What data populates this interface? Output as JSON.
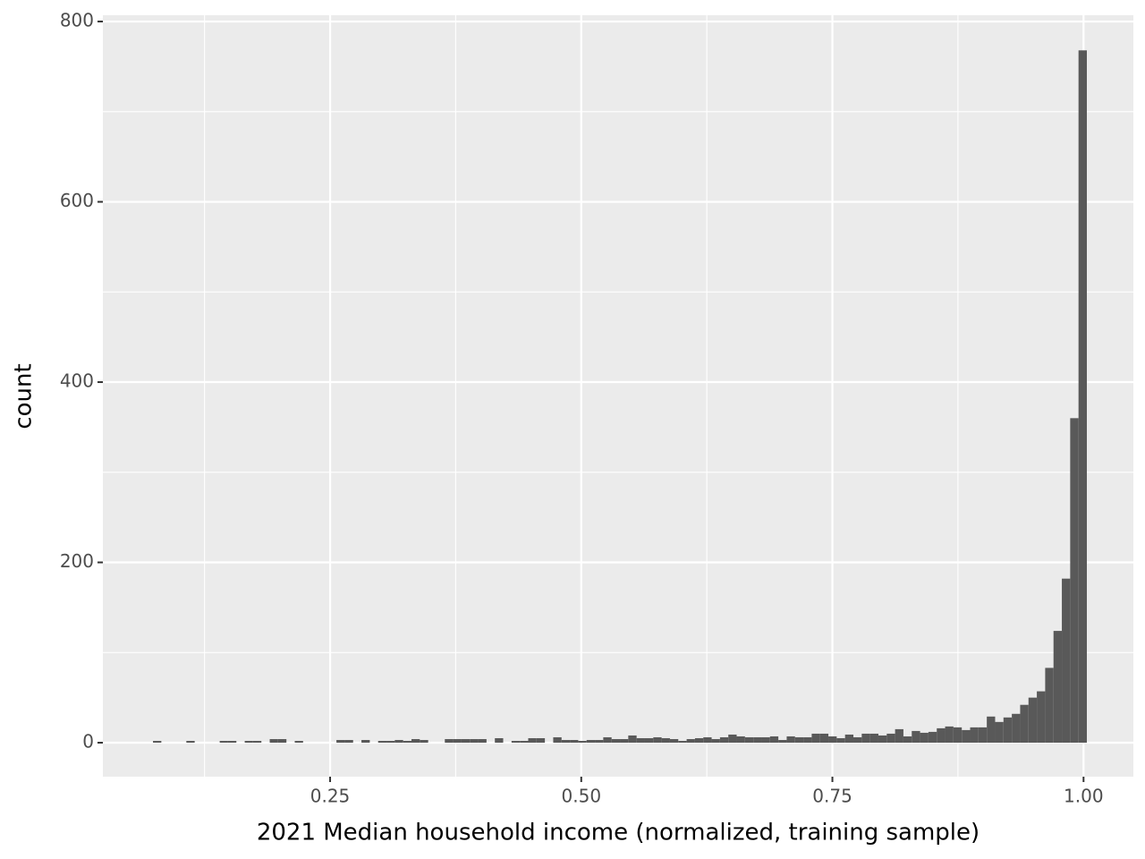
{
  "chart_data": {
    "type": "histogram",
    "x_label": "2021 Median household income (normalized, training sample)",
    "y_label": "count",
    "color": "#595959",
    "background": "#ebebeb",
    "grid": true,
    "xlim": [
      0.0238,
      1.0496
    ],
    "ylim": [
      -37.7,
      807
    ],
    "xticks": [
      {
        "value": 0.25,
        "label": "0.25"
      },
      {
        "value": 0.5,
        "label": "0.50"
      },
      {
        "value": 0.75,
        "label": "0.75"
      },
      {
        "value": 1,
        "label": "1.00"
      }
    ],
    "yticks": [
      0,
      200,
      400,
      600,
      800
    ],
    "xminor": [
      0.125,
      0.375,
      0.625,
      0.875
    ],
    "yminor": [
      100,
      300,
      500,
      700
    ],
    "bins": [
      0.0737,
      0.082,
      0.0903,
      0.0986,
      0.1069,
      0.1152,
      0.1235,
      0.1318,
      0.1401,
      0.1484,
      0.1567,
      0.165,
      0.1733,
      0.1816,
      0.1899,
      0.1982,
      0.2065,
      0.2148,
      0.2231,
      0.2314,
      0.2397,
      0.248,
      0.2563,
      0.2646,
      0.2729,
      0.2812,
      0.2895,
      0.2978,
      0.3061,
      0.3144,
      0.3227,
      0.331,
      0.3393,
      0.3476,
      0.3559,
      0.3642,
      0.3725,
      0.3808,
      0.3891,
      0.3974,
      0.4057,
      0.414,
      0.4223,
      0.4306,
      0.4389,
      0.4472,
      0.4555,
      0.4638,
      0.4721,
      0.4804,
      0.4887,
      0.497,
      0.5053,
      0.5136,
      0.5219,
      0.5302,
      0.5385,
      0.5468,
      0.5551,
      0.5634,
      0.5717,
      0.58,
      0.5883,
      0.5966,
      0.6049,
      0.6132,
      0.6215,
      0.6298,
      0.6381,
      0.6464,
      0.6547,
      0.663,
      0.6713,
      0.6796,
      0.6879,
      0.6962,
      0.7045,
      0.7128,
      0.7211,
      0.7294,
      0.7377,
      0.746,
      0.7543,
      0.7626,
      0.7709,
      0.7792,
      0.7875,
      0.7958,
      0.8041,
      0.8124,
      0.8207,
      0.829,
      0.8373,
      0.8456,
      0.8539,
      0.8622,
      0.8705,
      0.8788,
      0.8871,
      0.8954,
      0.9037,
      0.912,
      0.9203,
      0.9286,
      0.9369,
      0.9452,
      0.9535,
      0.9618,
      0.9701,
      0.9784,
      0.9867,
      0.995,
      1.0033
    ],
    "values": [
      2,
      0,
      0,
      0,
      2,
      0,
      0,
      0,
      2,
      2,
      0,
      2,
      2,
      0,
      4,
      4,
      0,
      2,
      0,
      0,
      0,
      0,
      3,
      3,
      0,
      3,
      0,
      2,
      2,
      3,
      2,
      4,
      3,
      0,
      0,
      4,
      4,
      4,
      4,
      4,
      0,
      5,
      0,
      2,
      2,
      5,
      5,
      0,
      6,
      3,
      3,
      2,
      3,
      3,
      6,
      4,
      4,
      8,
      5,
      5,
      6,
      5,
      4,
      2,
      4,
      5,
      6,
      4,
      6,
      9,
      7,
      6,
      6,
      6,
      7,
      3,
      7,
      6,
      6,
      10,
      10,
      7,
      5,
      9,
      6,
      10,
      10,
      8,
      10,
      15,
      7,
      13,
      11,
      12,
      16,
      18,
      17,
      14,
      17,
      17,
      29,
      23,
      28,
      32,
      42,
      50,
      57,
      83,
      124,
      182,
      360,
      768
    ]
  }
}
